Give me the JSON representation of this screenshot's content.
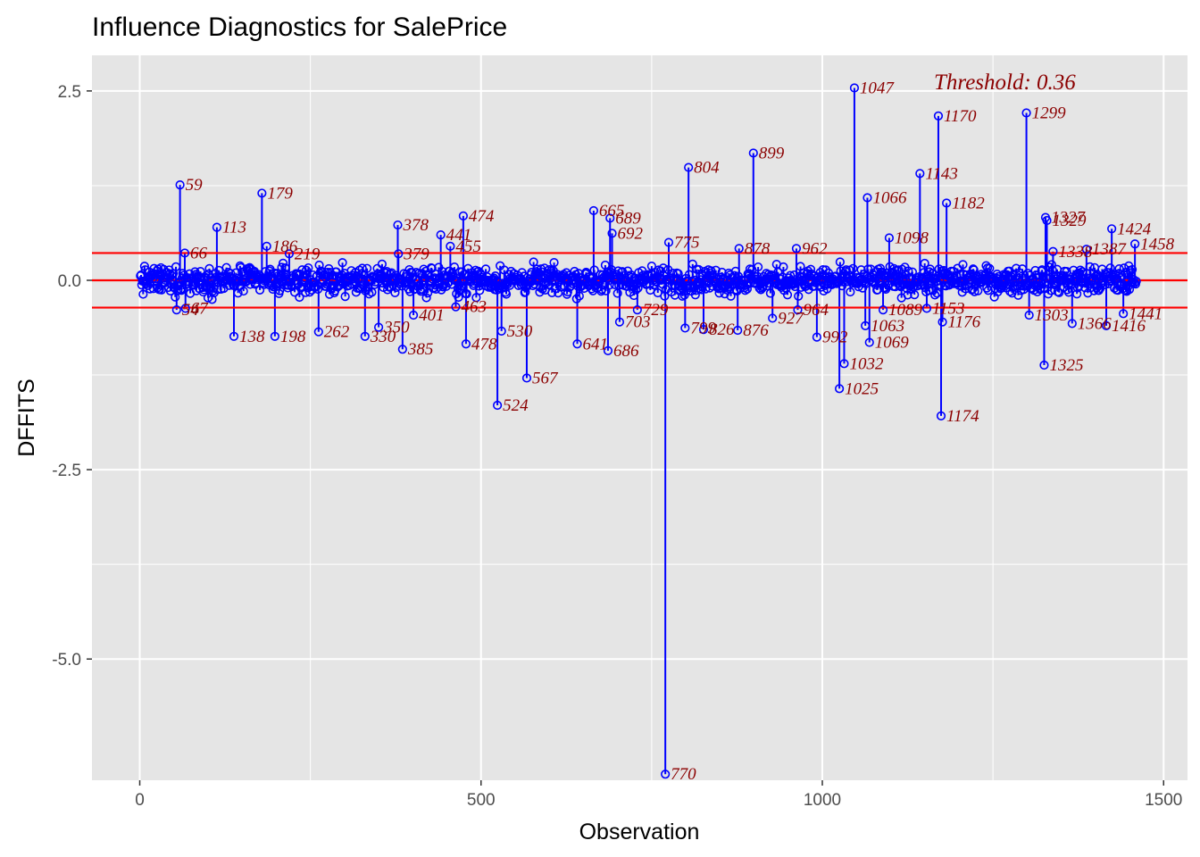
{
  "chart_data": {
    "type": "scatter",
    "title": "Influence Diagnostics for SalePrice",
    "xlabel": "Observation",
    "ylabel": "DFFITS",
    "xlim": [
      -70,
      1535
    ],
    "ylim": [
      -6.6,
      2.97
    ],
    "x_ticks": [
      0,
      500,
      1000,
      1500
    ],
    "x_tick_labels": [
      "0",
      "500",
      "1000",
      "1500"
    ],
    "y_ticks": [
      2.5,
      0.0,
      -2.5,
      -5.0
    ],
    "y_tick_labels": [
      "2.5",
      "0.0",
      "-2.5",
      "-5.0"
    ],
    "threshold": 0.36,
    "threshold_label": "Threshold: 0.36",
    "grid": true,
    "series_color": "#0000ff",
    "threshold_color": "#ff0000",
    "label_color": "#8b0000",
    "panel_color": "#e5e5e5",
    "n_observations": 1460,
    "labeled_points": [
      {
        "x": 59,
        "y": 1.26,
        "label": "59"
      },
      {
        "x": 66,
        "y": 0.36,
        "label": "66"
      },
      {
        "x": 54,
        "y": -0.39,
        "label": "54"
      },
      {
        "x": 67,
        "y": -0.37,
        "label": "67"
      },
      {
        "x": 113,
        "y": 0.7,
        "label": "113"
      },
      {
        "x": 138,
        "y": -0.74,
        "label": "138"
      },
      {
        "x": 179,
        "y": 1.15,
        "label": "179"
      },
      {
        "x": 186,
        "y": 0.45,
        "label": "186"
      },
      {
        "x": 198,
        "y": -0.74,
        "label": "198"
      },
      {
        "x": 219,
        "y": 0.35,
        "label": "219"
      },
      {
        "x": 262,
        "y": -0.68,
        "label": "262"
      },
      {
        "x": 330,
        "y": -0.74,
        "label": "330"
      },
      {
        "x": 350,
        "y": -0.62,
        "label": "350"
      },
      {
        "x": 378,
        "y": 0.73,
        "label": "378"
      },
      {
        "x": 379,
        "y": 0.35,
        "label": "379"
      },
      {
        "x": 385,
        "y": -0.91,
        "label": "385"
      },
      {
        "x": 401,
        "y": -0.46,
        "label": "401"
      },
      {
        "x": 441,
        "y": 0.6,
        "label": "441"
      },
      {
        "x": 455,
        "y": 0.45,
        "label": "455"
      },
      {
        "x": 463,
        "y": -0.35,
        "label": "463"
      },
      {
        "x": 474,
        "y": 0.85,
        "label": "474"
      },
      {
        "x": 478,
        "y": -0.84,
        "label": "478"
      },
      {
        "x": 524,
        "y": -1.65,
        "label": "524"
      },
      {
        "x": 530,
        "y": -0.67,
        "label": "530"
      },
      {
        "x": 567,
        "y": -1.29,
        "label": "567"
      },
      {
        "x": 641,
        "y": -0.84,
        "label": "641"
      },
      {
        "x": 665,
        "y": 0.92,
        "label": "665"
      },
      {
        "x": 686,
        "y": -0.93,
        "label": "686"
      },
      {
        "x": 689,
        "y": 0.82,
        "label": "689"
      },
      {
        "x": 692,
        "y": 0.62,
        "label": "692"
      },
      {
        "x": 703,
        "y": -0.55,
        "label": "703"
      },
      {
        "x": 729,
        "y": -0.39,
        "label": "729"
      },
      {
        "x": 770,
        "y": -6.52,
        "label": "770"
      },
      {
        "x": 775,
        "y": 0.5,
        "label": "775"
      },
      {
        "x": 799,
        "y": -0.63,
        "label": "799"
      },
      {
        "x": 804,
        "y": 1.49,
        "label": "804"
      },
      {
        "x": 826,
        "y": -0.65,
        "label": "826"
      },
      {
        "x": 876,
        "y": -0.66,
        "label": "876"
      },
      {
        "x": 878,
        "y": 0.42,
        "label": "878"
      },
      {
        "x": 899,
        "y": 1.68,
        "label": "899"
      },
      {
        "x": 927,
        "y": -0.5,
        "label": "927"
      },
      {
        "x": 962,
        "y": 0.42,
        "label": "962"
      },
      {
        "x": 964,
        "y": -0.39,
        "label": "964"
      },
      {
        "x": 992,
        "y": -0.75,
        "label": "992"
      },
      {
        "x": 1025,
        "y": -1.43,
        "label": "1025"
      },
      {
        "x": 1032,
        "y": -1.1,
        "label": "1032"
      },
      {
        "x": 1047,
        "y": 2.54,
        "label": "1047"
      },
      {
        "x": 1063,
        "y": -0.6,
        "label": "1063"
      },
      {
        "x": 1066,
        "y": 1.09,
        "label": "1066"
      },
      {
        "x": 1069,
        "y": -0.82,
        "label": "1069"
      },
      {
        "x": 1089,
        "y": -0.39,
        "label": "1089"
      },
      {
        "x": 1098,
        "y": 0.56,
        "label": "1098"
      },
      {
        "x": 1143,
        "y": 1.41,
        "label": "1143"
      },
      {
        "x": 1153,
        "y": -0.37,
        "label": "1153"
      },
      {
        "x": 1170,
        "y": 2.17,
        "label": "1170"
      },
      {
        "x": 1174,
        "y": -1.79,
        "label": "1174"
      },
      {
        "x": 1176,
        "y": -0.55,
        "label": "1176"
      },
      {
        "x": 1182,
        "y": 1.02,
        "label": "1182"
      },
      {
        "x": 1299,
        "y": 2.21,
        "label": "1299"
      },
      {
        "x": 1303,
        "y": -0.46,
        "label": "1303"
      },
      {
        "x": 1325,
        "y": -1.12,
        "label": "1325"
      },
      {
        "x": 1327,
        "y": 0.83,
        "label": "1327"
      },
      {
        "x": 1329,
        "y": 0.79,
        "label": "1329"
      },
      {
        "x": 1338,
        "y": 0.38,
        "label": "1338"
      },
      {
        "x": 1366,
        "y": -0.57,
        "label": "1366"
      },
      {
        "x": 1387,
        "y": 0.41,
        "label": "1387"
      },
      {
        "x": 1416,
        "y": -0.6,
        "label": "1416"
      },
      {
        "x": 1424,
        "y": 0.68,
        "label": "1424"
      },
      {
        "x": 1441,
        "y": -0.44,
        "label": "1441"
      },
      {
        "x": 1458,
        "y": 0.48,
        "label": "1458"
      }
    ]
  }
}
